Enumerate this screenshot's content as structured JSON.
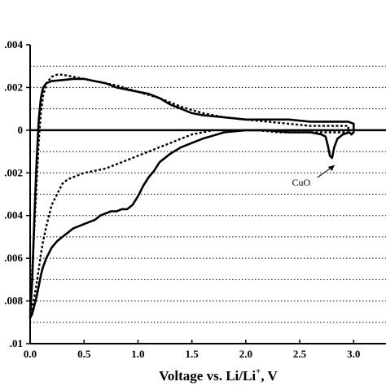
{
  "chart_data": {
    "type": "line",
    "title": "",
    "xlabel": "Voltage vs. Li/Li",
    "xlabel_sup": "+",
    "xlabel_unit": ", V",
    "ylabel": "",
    "xlim": [
      0,
      3.3
    ],
    "ylim": [
      -0.01,
      0.004
    ],
    "x_ticks": [
      0.0,
      0.5,
      1.0,
      1.5,
      2.0,
      2.5,
      3.0
    ],
    "x_tick_labels": [
      "0.0",
      "0.5",
      "1.0",
      "1.5",
      "2.0",
      "2.5",
      "3.0"
    ],
    "y_ticks": [
      0.004,
      0.002,
      0,
      -0.002,
      -0.004,
      -0.006,
      -0.008,
      -0.01
    ],
    "y_tick_labels": [
      ".004",
      ".002",
      "0",
      ".002",
      ".004",
      ".006",
      ".008",
      ".01"
    ],
    "grid_lines_y": [
      0.003,
      0.002,
      0.001,
      -0.001,
      -0.002,
      -0.003,
      -0.004,
      -0.005,
      -0.006,
      -0.007,
      -0.008,
      -0.009
    ],
    "grid": true,
    "legend": "none",
    "series": [
      {
        "style": "solid",
        "x": [
          0.0,
          0.02,
          0.04,
          0.06,
          0.08,
          0.1,
          0.12,
          0.15,
          0.2,
          0.3,
          0.4,
          0.5,
          0.6,
          0.7,
          0.8,
          0.9,
          1.0,
          1.1,
          1.2,
          1.3,
          1.4,
          1.5,
          1.6,
          1.8,
          2.0,
          2.2,
          2.4,
          2.6,
          2.8,
          2.95,
          3.0,
          3.0,
          2.98,
          2.96,
          2.9,
          2.85,
          2.82,
          2.8,
          2.78,
          2.76,
          2.74,
          2.7,
          2.6,
          2.4,
          2.2,
          2.0,
          1.8,
          1.6,
          1.5,
          1.4,
          1.3,
          1.2,
          1.15,
          1.1,
          1.05,
          1.0,
          0.95,
          0.9,
          0.85,
          0.8,
          0.75,
          0.7,
          0.65,
          0.6,
          0.55,
          0.5,
          0.45,
          0.4,
          0.35,
          0.3,
          0.25,
          0.2,
          0.15,
          0.12,
          0.1,
          0.08,
          0.06,
          0.04,
          0.02,
          0.0
        ],
        "y": [
          -0.0088,
          -0.007,
          -0.004,
          -0.0015,
          0.0005,
          0.0015,
          0.002,
          0.0022,
          0.0023,
          0.00235,
          0.0024,
          0.0024,
          0.0023,
          0.0022,
          0.002,
          0.0019,
          0.0018,
          0.0017,
          0.0015,
          0.0012,
          0.001,
          0.0008,
          0.0007,
          0.0006,
          0.0005,
          0.0005,
          0.0005,
          0.0004,
          0.0004,
          0.0004,
          0.0003,
          -0.0001,
          -0.0002,
          -0.0001,
          -0.0002,
          -0.0004,
          -0.0008,
          -0.0013,
          -0.0012,
          -0.0007,
          -0.0003,
          -0.0002,
          -0.0001,
          -0.0001,
          0.0,
          0.0,
          -0.0001,
          -0.0004,
          -0.0006,
          -0.0008,
          -0.0011,
          -0.0015,
          -0.0019,
          -0.0022,
          -0.0026,
          -0.0031,
          -0.0035,
          -0.0037,
          -0.0037,
          -0.0038,
          -0.0038,
          -0.0039,
          -0.004,
          -0.0042,
          -0.0043,
          -0.0044,
          -0.0045,
          -0.0046,
          -0.0048,
          -0.005,
          -0.0052,
          -0.0055,
          -0.006,
          -0.0064,
          -0.0068,
          -0.0073,
          -0.0078,
          -0.0082,
          -0.0086,
          -0.0088
        ]
      },
      {
        "style": "dashed",
        "x": [
          0.0,
          0.02,
          0.04,
          0.06,
          0.08,
          0.1,
          0.12,
          0.15,
          0.2,
          0.25,
          0.3,
          0.4,
          0.5,
          0.6,
          0.8,
          1.0,
          1.2,
          1.3,
          1.4,
          1.6,
          1.8,
          2.0,
          2.2,
          2.4,
          2.6,
          2.8,
          2.95,
          2.95,
          2.9,
          2.7,
          2.5,
          2.3,
          2.1,
          1.9,
          1.8,
          1.7,
          1.6,
          1.5,
          1.4,
          1.3,
          1.2,
          1.1,
          1.0,
          0.9,
          0.8,
          0.7,
          0.6,
          0.5,
          0.4,
          0.35,
          0.3,
          0.25,
          0.2,
          0.15,
          0.12,
          0.1,
          0.08,
          0.06,
          0.04,
          0.02,
          0.0
        ],
        "y": [
          -0.0085,
          -0.0065,
          -0.0045,
          -0.0025,
          -0.0005,
          0.0008,
          0.0016,
          0.0022,
          0.0025,
          0.0026,
          0.0026,
          0.0025,
          0.0024,
          0.0023,
          0.0021,
          0.0018,
          0.0015,
          0.0013,
          0.0011,
          0.0008,
          0.0006,
          0.0005,
          0.0004,
          0.0003,
          0.0002,
          0.0002,
          0.0002,
          -0.0001,
          -0.0001,
          -0.0001,
          -0.0001,
          -0.0001,
          0.0,
          0.0,
          0.0,
          0.0,
          -0.0001,
          -0.0002,
          -0.0004,
          -0.0006,
          -0.0008,
          -0.001,
          -0.0012,
          -0.0014,
          -0.0016,
          -0.0018,
          -0.0019,
          -0.002,
          -0.0022,
          -0.0023,
          -0.0025,
          -0.003,
          -0.0035,
          -0.0045,
          -0.0052,
          -0.0058,
          -0.0065,
          -0.0072,
          -0.0078,
          -0.0083,
          -0.0086
        ]
      }
    ],
    "annotations": [
      {
        "text": "CuO",
        "points_to": [
          2.8,
          -0.0013
        ]
      }
    ]
  }
}
